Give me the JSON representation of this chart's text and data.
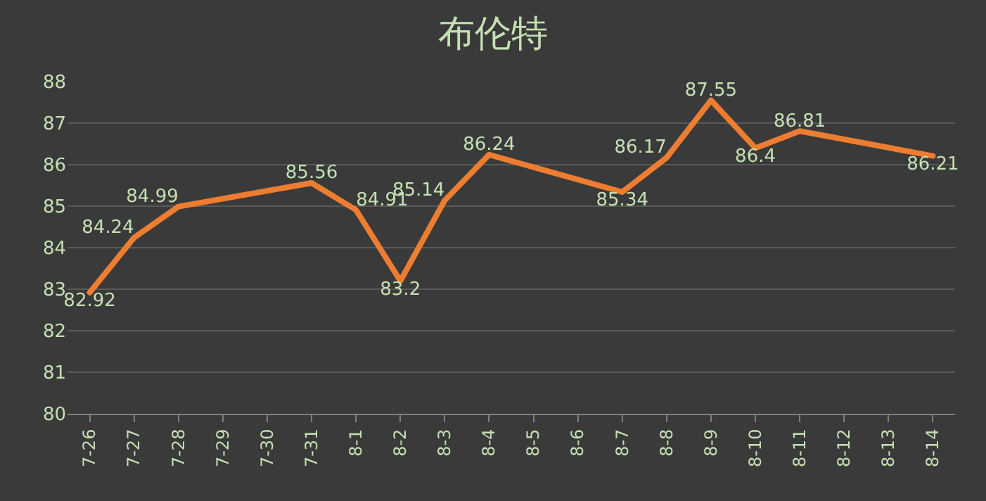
{
  "chart_data": {
    "type": "line",
    "title": "布伦特",
    "categories": [
      "7-26",
      "7-27",
      "7-28",
      "7-29",
      "7-30",
      "7-31",
      "8-1",
      "8-2",
      "8-3",
      "8-4",
      "8-5",
      "8-6",
      "8-7",
      "8-8",
      "8-9",
      "8-10",
      "8-11",
      "8-12",
      "8-13",
      "8-14"
    ],
    "series": [
      {
        "color": "#ed7d31",
        "values": [
          82.92,
          84.24,
          84.99,
          null,
          null,
          85.56,
          84.91,
          83.2,
          85.14,
          86.24,
          null,
          null,
          85.34,
          86.17,
          87.55,
          86.4,
          86.81,
          null,
          null,
          86.21
        ]
      }
    ],
    "ylim": [
      80,
      88
    ],
    "yticks": [
      80,
      81,
      82,
      83,
      84,
      85,
      86,
      87,
      88
    ],
    "grid": "y",
    "data_labels": true,
    "marker": "none",
    "line_style": "solid"
  }
}
